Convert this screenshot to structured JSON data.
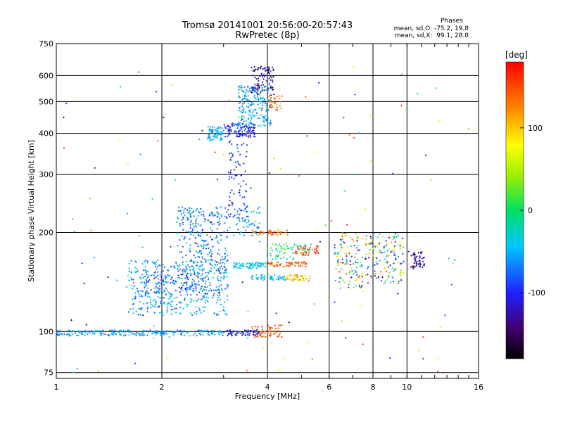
{
  "chart_data": {
    "type": "scatter",
    "title": "Tromsø 20141001 20:56:00-20:57:43",
    "subtitle": "RwPretec (8p)",
    "xlabel": "Frequency [MHz]",
    "ylabel": "Stationary phase Virtual Height [km]",
    "x_scale": "log",
    "y_scale": "log",
    "xlim": [
      1,
      16
    ],
    "ylim": [
      72,
      750
    ],
    "x_ticks": [
      1,
      2,
      4,
      6,
      8,
      10,
      16
    ],
    "x_tick_labels": [
      "1",
      "2",
      "4",
      "6",
      "8",
      "10",
      "16"
    ],
    "y_ticks": [
      75,
      100,
      200,
      300,
      400,
      500,
      600,
      750
    ],
    "y_tick_labels": [
      "75",
      "100",
      "200",
      "300",
      "400",
      "500",
      "600",
      "750"
    ],
    "grid": true,
    "phase_stats": {
      "heading": "Phases",
      "o_line": "mean, sd,O: -75.2, 19.8",
      "x_line": "mean, sd,X:  99.1, 28.8"
    },
    "colorbar": {
      "label": "[deg]",
      "range": [
        -180,
        180
      ],
      "ticks": [
        100,
        0,
        -100
      ],
      "tick_labels": [
        "100",
        "0",
        "-100"
      ],
      "colormap": "rainbow"
    },
    "clusters": [
      {
        "f_range": [
          1.0,
          3.0
        ],
        "h_range": [
          97,
          101
        ],
        "phase_range": [
          -80,
          -35
        ],
        "count": 220
      },
      {
        "f_range": [
          3.0,
          3.8
        ],
        "h_range": [
          97,
          101
        ],
        "phase_range": [
          -120,
          -80
        ],
        "count": 60
      },
      {
        "f_range": [
          3.6,
          4.4
        ],
        "h_range": [
          96,
          105
        ],
        "phase_range": [
          120,
          175
        ],
        "count": 55
      },
      {
        "f_range": [
          1.6,
          3.1
        ],
        "h_range": [
          112,
          165
        ],
        "phase_range": [
          -90,
          -30
        ],
        "count": 420
      },
      {
        "f_range": [
          2.2,
          3.1
        ],
        "h_range": [
          150,
          240
        ],
        "phase_range": [
          -100,
          -40
        ],
        "count": 260
      },
      {
        "f_range": [
          1.8,
          2.7
        ],
        "h_range": [
          130,
          150
        ],
        "phase_range": [
          -110,
          -60
        ],
        "count": 80
      },
      {
        "f_range": [
          2.7,
          3.0
        ],
        "h_range": [
          380,
          420
        ],
        "phase_range": [
          -70,
          -30
        ],
        "count": 70
      },
      {
        "f_range": [
          3.1,
          3.5
        ],
        "h_range": [
          220,
          380
        ],
        "phase_range": [
          -120,
          -70
        ],
        "count": 80
      },
      {
        "f_range": [
          3.0,
          3.7
        ],
        "h_range": [
          390,
          430
        ],
        "phase_range": [
          -120,
          -80
        ],
        "count": 110
      },
      {
        "f_range": [
          3.3,
          4.1
        ],
        "h_range": [
          420,
          560
        ],
        "phase_range": [
          -80,
          -30
        ],
        "count": 200
      },
      {
        "f_range": [
          3.6,
          4.2
        ],
        "h_range": [
          520,
          640
        ],
        "phase_range": [
          -150,
          -100
        ],
        "count": 90
      },
      {
        "f_range": [
          4.0,
          4.4
        ],
        "h_range": [
          470,
          520
        ],
        "phase_range": [
          110,
          165
        ],
        "count": 30
      },
      {
        "f_range": [
          3.2,
          4.0
        ],
        "h_range": [
          155,
          162
        ],
        "phase_range": [
          -60,
          -20
        ],
        "count": 70
      },
      {
        "f_range": [
          4.0,
          5.2
        ],
        "h_range": [
          157,
          163
        ],
        "phase_range": [
          120,
          170
        ],
        "count": 60
      },
      {
        "f_range": [
          3.6,
          4.5
        ],
        "h_range": [
          143,
          149
        ],
        "phase_range": [
          -60,
          -20
        ],
        "count": 50
      },
      {
        "f_range": [
          4.5,
          5.3
        ],
        "h_range": [
          142,
          149
        ],
        "phase_range": [
          50,
          140
        ],
        "count": 50
      },
      {
        "f_range": [
          4.0,
          5.4
        ],
        "h_range": [
          165,
          185
        ],
        "phase_range": [
          -50,
          40
        ],
        "count": 70
      },
      {
        "f_range": [
          4.8,
          5.6
        ],
        "h_range": [
          170,
          185
        ],
        "phase_range": [
          130,
          175
        ],
        "count": 40
      },
      {
        "f_range": [
          3.6,
          4.6
        ],
        "h_range": [
          196,
          204
        ],
        "phase_range": [
          110,
          160
        ],
        "count": 40
      },
      {
        "f_range": [
          3.2,
          3.8
        ],
        "h_range": [
          195,
          240
        ],
        "phase_range": [
          -80,
          -30
        ],
        "count": 50
      },
      {
        "f_range": [
          6.2,
          7.5
        ],
        "h_range": [
          135,
          200
        ],
        "phase_range": [
          -150,
          160
        ],
        "count": 120
      },
      {
        "f_range": [
          7.6,
          9.8
        ],
        "h_range": [
          140,
          200
        ],
        "phase_range": [
          -150,
          160
        ],
        "count": 140
      },
      {
        "f_range": [
          10.1,
          11.2
        ],
        "h_range": [
          155,
          175
        ],
        "phase_range": [
          -150,
          -110
        ],
        "count": 50
      },
      {
        "f_range": [
          1.0,
          15.5
        ],
        "h_range": [
          75,
          640
        ],
        "phase_range": [
          -170,
          175
        ],
        "count": 140
      }
    ]
  }
}
